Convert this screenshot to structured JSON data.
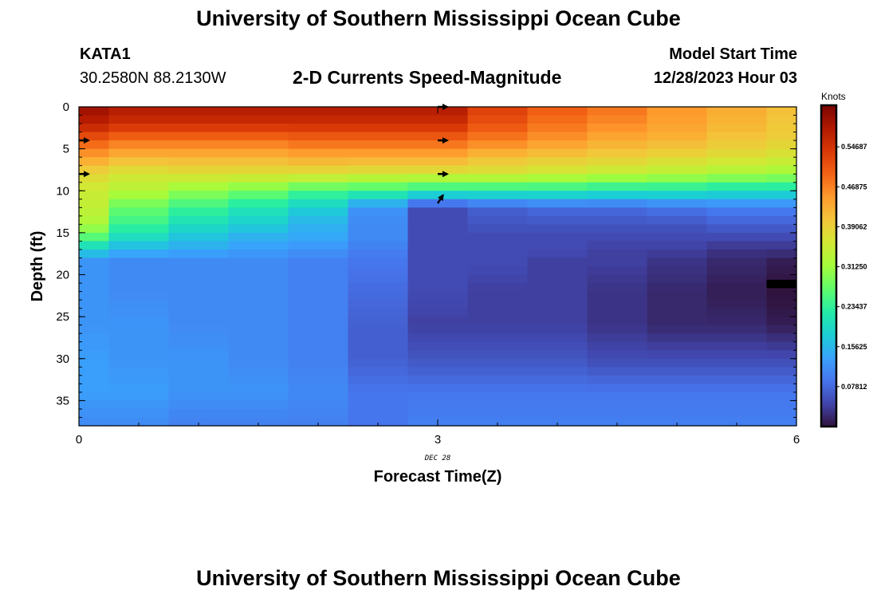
{
  "header": {
    "title_top": "University of Southern Mississippi Ocean Cube",
    "station": "KATA1",
    "coords": "30.2580N  88.2130W",
    "plot_title": "2-D Currents Speed-Magnitude",
    "model_start_label": "Model Start Time",
    "model_start_value": "12/28/2023 Hour 03",
    "title_bottom": "University of Southern Mississippi Ocean Cube"
  },
  "chart_data": {
    "type": "heatmap",
    "xlabel": "Forecast Time(Z)",
    "ylabel": "Depth (ft)",
    "date_label": "DEC 28",
    "x_ticks": [
      0,
      3,
      6
    ],
    "y_ticks": [
      0,
      5,
      10,
      15,
      20,
      25,
      30,
      35
    ],
    "xlim": [
      0,
      6
    ],
    "ylim": [
      0,
      38
    ],
    "y_inverted": true,
    "colorbar": {
      "title": "Knots",
      "min": 0,
      "max": 0.625,
      "ticks": [
        "0.07812",
        "0.15625",
        "0.23437",
        "0.31250",
        "0.39062",
        "0.46875",
        "0.54687"
      ],
      "colors": [
        "#30123b",
        "#4145ab",
        "#4675ed",
        "#39a2fc",
        "#1bcfd4",
        "#24eca6",
        "#61fc6c",
        "#a4fc3b",
        "#d1e834",
        "#f3c63a",
        "#fe9b2d",
        "#f36315",
        "#d93806",
        "#b11901",
        "#7a0402"
      ]
    },
    "x": [
      0,
      0.5,
      1,
      1.5,
      2,
      2.5,
      3,
      3.5,
      4,
      4.5,
      5,
      5.5,
      6
    ],
    "profiles": [
      {
        "x": 0,
        "depth": [
          0,
          2,
          4,
          6,
          8,
          10,
          12,
          14,
          15.5,
          17,
          18.5,
          22,
          26,
          30,
          34,
          38
        ],
        "speed": [
          0.6,
          0.57,
          0.5,
          0.44,
          0.38,
          0.35,
          0.34,
          0.32,
          0.26,
          0.18,
          0.12,
          0.12,
          0.12,
          0.13,
          0.13,
          0.11
        ]
      },
      {
        "x": 0.5,
        "depth": [
          0,
          2,
          4,
          6,
          8,
          10,
          12,
          14,
          15.5,
          17,
          18.5,
          22,
          26,
          30,
          34,
          38
        ],
        "speed": [
          0.58,
          0.55,
          0.48,
          0.42,
          0.36,
          0.33,
          0.27,
          0.24,
          0.2,
          0.15,
          0.11,
          0.11,
          0.12,
          0.12,
          0.13,
          0.11
        ]
      },
      {
        "x": 1,
        "depth": [
          0,
          2,
          4,
          6,
          8,
          10,
          12,
          14,
          15.5,
          17,
          18.5,
          22,
          26,
          30,
          34,
          38
        ],
        "speed": [
          0.58,
          0.55,
          0.48,
          0.42,
          0.37,
          0.3,
          0.24,
          0.2,
          0.17,
          0.14,
          0.11,
          0.11,
          0.11,
          0.12,
          0.12,
          0.1
        ]
      },
      {
        "x": 1.5,
        "depth": [
          0,
          2,
          4,
          6,
          8,
          10,
          12,
          14,
          15.5,
          17,
          18.5,
          22,
          26,
          30,
          34,
          38
        ],
        "speed": [
          0.58,
          0.55,
          0.48,
          0.42,
          0.37,
          0.28,
          0.21,
          0.18,
          0.15,
          0.13,
          0.11,
          0.11,
          0.11,
          0.11,
          0.12,
          0.1
        ]
      },
      {
        "x": 2,
        "depth": [
          0,
          2,
          4,
          6,
          8,
          10,
          12,
          14,
          15.5,
          17,
          18.5,
          22,
          26,
          30,
          34,
          38
        ],
        "speed": [
          0.58,
          0.55,
          0.49,
          0.43,
          0.37,
          0.25,
          0.18,
          0.15,
          0.14,
          0.12,
          0.1,
          0.1,
          0.1,
          0.1,
          0.11,
          0.1
        ]
      },
      {
        "x": 2.5,
        "depth": [
          0,
          2,
          4,
          6,
          8,
          10,
          12,
          14,
          15.5,
          17,
          18.5,
          22,
          26,
          30,
          34,
          38
        ],
        "speed": [
          0.58,
          0.55,
          0.49,
          0.43,
          0.36,
          0.24,
          0.12,
          0.11,
          0.11,
          0.1,
          0.09,
          0.08,
          0.07,
          0.07,
          0.09,
          0.09
        ]
      },
      {
        "x": 3,
        "depth": [
          0,
          2,
          4,
          6,
          8,
          10,
          12,
          14,
          15.5,
          17,
          18.5,
          22,
          26,
          30,
          34,
          38
        ],
        "speed": [
          0.58,
          0.55,
          0.49,
          0.43,
          0.36,
          0.22,
          0.05,
          0.05,
          0.05,
          0.05,
          0.05,
          0.05,
          0.04,
          0.06,
          0.09,
          0.1
        ]
      },
      {
        "x": 3.5,
        "depth": [
          0,
          2,
          4,
          6,
          8,
          10,
          12,
          14,
          15.5,
          17,
          18.5,
          22,
          26,
          30,
          34,
          38
        ],
        "speed": [
          0.53,
          0.51,
          0.47,
          0.41,
          0.36,
          0.22,
          0.07,
          0.06,
          0.05,
          0.05,
          0.05,
          0.04,
          0.04,
          0.06,
          0.09,
          0.1
        ]
      },
      {
        "x": 4,
        "depth": [
          0,
          2,
          4,
          6,
          8,
          10,
          12,
          14,
          15.5,
          17,
          18.5,
          22,
          26,
          30,
          34,
          38
        ],
        "speed": [
          0.5,
          0.48,
          0.45,
          0.4,
          0.35,
          0.22,
          0.08,
          0.06,
          0.05,
          0.05,
          0.04,
          0.04,
          0.04,
          0.06,
          0.09,
          0.1
        ]
      },
      {
        "x": 4.5,
        "depth": [
          0,
          2,
          4,
          6,
          8,
          10,
          12,
          14,
          15.5,
          17,
          18.5,
          22,
          26,
          30,
          34,
          38
        ],
        "speed": [
          0.48,
          0.46,
          0.43,
          0.39,
          0.34,
          0.21,
          0.08,
          0.06,
          0.05,
          0.04,
          0.04,
          0.03,
          0.03,
          0.05,
          0.09,
          0.1
        ]
      },
      {
        "x": 5,
        "depth": [
          0,
          2,
          4,
          6,
          8,
          10,
          12,
          14,
          15.5,
          17,
          18.5,
          22,
          26,
          30,
          34,
          38
        ],
        "speed": [
          0.45,
          0.44,
          0.42,
          0.38,
          0.33,
          0.21,
          0.09,
          0.06,
          0.05,
          0.04,
          0.03,
          0.02,
          0.02,
          0.05,
          0.09,
          0.1
        ]
      },
      {
        "x": 5.5,
        "depth": [
          0,
          2,
          4,
          6,
          8,
          10,
          12,
          14,
          15.5,
          17,
          18.5,
          22,
          26,
          30,
          34,
          38
        ],
        "speed": [
          0.43,
          0.42,
          0.4,
          0.37,
          0.32,
          0.2,
          0.1,
          0.07,
          0.05,
          0.03,
          0.02,
          0.01,
          0.02,
          0.05,
          0.09,
          0.1
        ]
      },
      {
        "x": 6,
        "depth": [
          0,
          2,
          4,
          6,
          8,
          10,
          12,
          14,
          15.5,
          17,
          18.5,
          22,
          26,
          30,
          34,
          38
        ],
        "speed": [
          0.41,
          0.4,
          0.39,
          0.36,
          0.31,
          0.2,
          0.1,
          0.07,
          0.05,
          0.03,
          0.01,
          0.0,
          0.01,
          0.05,
          0.09,
          0.1
        ]
      }
    ],
    "vectors": [
      {
        "x": 0,
        "depth": 4,
        "direction": "east"
      },
      {
        "x": 0,
        "depth": 8,
        "direction": "east"
      },
      {
        "x": 3,
        "depth": 0,
        "direction": "east"
      },
      {
        "x": 3,
        "depth": 4,
        "direction": "east"
      },
      {
        "x": 3,
        "depth": 8,
        "direction": "east"
      },
      {
        "x": 3,
        "depth": 11.5,
        "direction": "northeast"
      }
    ]
  }
}
